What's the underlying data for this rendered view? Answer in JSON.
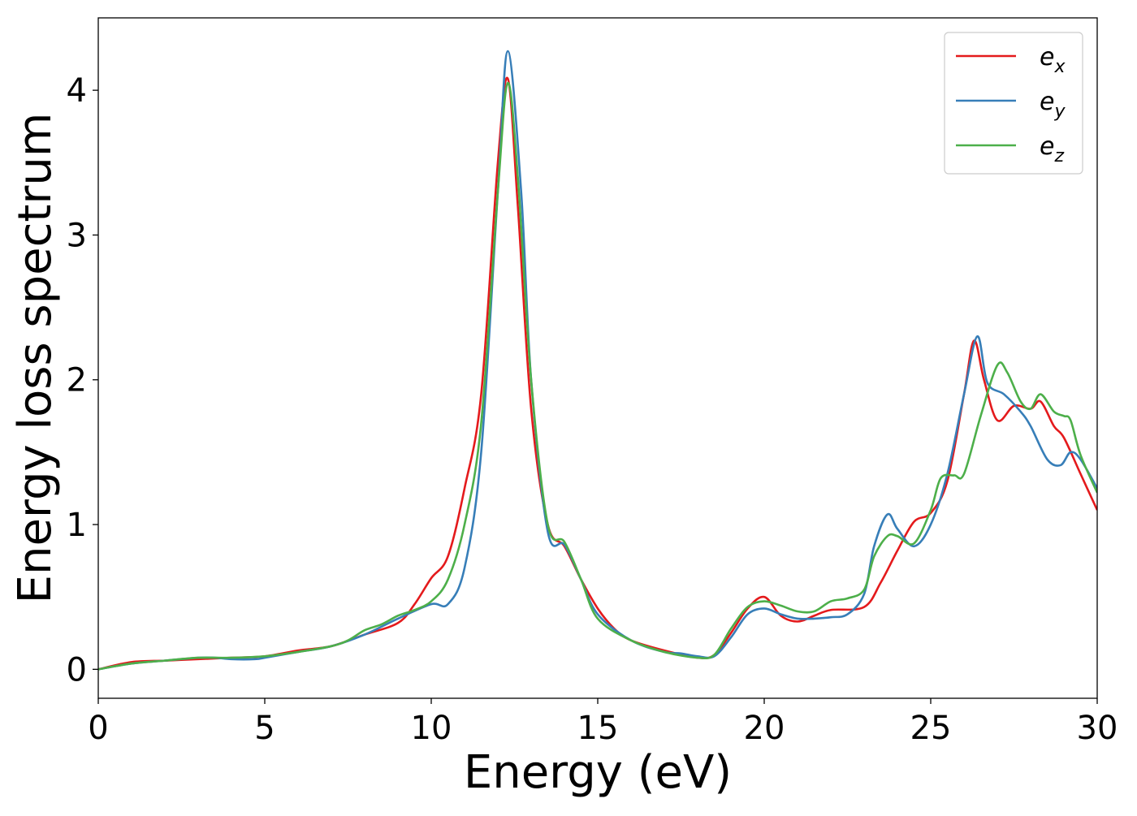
{
  "chart_data": {
    "type": "line",
    "xlabel": "Energy (eV)",
    "ylabel": "Energy loss spectrum",
    "xlim": [
      0,
      30
    ],
    "ylim": [
      -0.2,
      4.5
    ],
    "xticks": [
      0,
      5,
      10,
      15,
      20,
      25,
      30
    ],
    "xtick_labels": [
      "0",
      "5",
      "10",
      "15",
      "20",
      "25",
      "30"
    ],
    "yticks": [
      0,
      1,
      2,
      3,
      4
    ],
    "ytick_labels": [
      "0",
      "1",
      "2",
      "3",
      "4"
    ],
    "grid": false,
    "legend_position": "top-right",
    "series": [
      {
        "name": "e_x",
        "legend_base": "e",
        "legend_sub": "x",
        "color": "#e41a1c",
        "points": [
          [
            0,
            0.0
          ],
          [
            1,
            0.05
          ],
          [
            2,
            0.06
          ],
          [
            3,
            0.07
          ],
          [
            4,
            0.08
          ],
          [
            5,
            0.09
          ],
          [
            6,
            0.13
          ],
          [
            7,
            0.16
          ],
          [
            8,
            0.24
          ],
          [
            9,
            0.32
          ],
          [
            9.5,
            0.45
          ],
          [
            10,
            0.63
          ],
          [
            10.5,
            0.78
          ],
          [
            11,
            1.25
          ],
          [
            11.5,
            1.9
          ],
          [
            12,
            3.5
          ],
          [
            12.3,
            4.08
          ],
          [
            12.6,
            3.2
          ],
          [
            13,
            1.8
          ],
          [
            13.5,
            1.0
          ],
          [
            14,
            0.85
          ],
          [
            14.5,
            0.62
          ],
          [
            15,
            0.42
          ],
          [
            15.5,
            0.28
          ],
          [
            16,
            0.2
          ],
          [
            17,
            0.13
          ],
          [
            18,
            0.08
          ],
          [
            18.5,
            0.1
          ],
          [
            19,
            0.25
          ],
          [
            19.5,
            0.42
          ],
          [
            20,
            0.5
          ],
          [
            20.5,
            0.37
          ],
          [
            21,
            0.33
          ],
          [
            21.5,
            0.37
          ],
          [
            22,
            0.41
          ],
          [
            23,
            0.43
          ],
          [
            23.5,
            0.6
          ],
          [
            24,
            0.82
          ],
          [
            24.5,
            1.02
          ],
          [
            25,
            1.08
          ],
          [
            25.5,
            1.3
          ],
          [
            26,
            1.9
          ],
          [
            26.3,
            2.27
          ],
          [
            26.6,
            2.0
          ],
          [
            27,
            1.72
          ],
          [
            27.5,
            1.82
          ],
          [
            28,
            1.8
          ],
          [
            28.3,
            1.85
          ],
          [
            28.7,
            1.68
          ],
          [
            29,
            1.6
          ],
          [
            29.5,
            1.35
          ],
          [
            30,
            1.1
          ]
        ]
      },
      {
        "name": "e_y",
        "legend_base": "e",
        "legend_sub": "y",
        "color": "#377eb8",
        "points": [
          [
            0,
            0.0
          ],
          [
            1,
            0.04
          ],
          [
            2,
            0.06
          ],
          [
            3,
            0.08
          ],
          [
            3.5,
            0.08
          ],
          [
            4,
            0.07
          ],
          [
            4.7,
            0.07
          ],
          [
            5,
            0.08
          ],
          [
            6,
            0.12
          ],
          [
            7,
            0.16
          ],
          [
            8,
            0.24
          ],
          [
            9,
            0.35
          ],
          [
            10,
            0.45
          ],
          [
            10.5,
            0.45
          ],
          [
            11,
            0.7
          ],
          [
            11.5,
            1.5
          ],
          [
            12,
            3.3
          ],
          [
            12.3,
            4.27
          ],
          [
            12.7,
            3.3
          ],
          [
            13,
            2.0
          ],
          [
            13.5,
            0.95
          ],
          [
            14,
            0.86
          ],
          [
            14.5,
            0.62
          ],
          [
            15,
            0.38
          ],
          [
            16,
            0.2
          ],
          [
            17,
            0.12
          ],
          [
            17.5,
            0.11
          ],
          [
            18,
            0.09
          ],
          [
            18.5,
            0.09
          ],
          [
            19,
            0.22
          ],
          [
            19.5,
            0.38
          ],
          [
            20,
            0.42
          ],
          [
            20.5,
            0.38
          ],
          [
            21,
            0.35
          ],
          [
            21.5,
            0.35
          ],
          [
            22,
            0.36
          ],
          [
            22.5,
            0.38
          ],
          [
            23,
            0.52
          ],
          [
            23.3,
            0.85
          ],
          [
            23.7,
            1.07
          ],
          [
            24,
            0.97
          ],
          [
            24.5,
            0.85
          ],
          [
            25,
            1.0
          ],
          [
            25.5,
            1.35
          ],
          [
            26,
            1.9
          ],
          [
            26.4,
            2.3
          ],
          [
            26.7,
            1.98
          ],
          [
            27.2,
            1.9
          ],
          [
            27.7,
            1.78
          ],
          [
            28,
            1.68
          ],
          [
            28.5,
            1.45
          ],
          [
            28.9,
            1.41
          ],
          [
            29.2,
            1.5
          ],
          [
            29.5,
            1.45
          ],
          [
            30,
            1.25
          ]
        ]
      },
      {
        "name": "e_z",
        "legend_base": "e",
        "legend_sub": "z",
        "color": "#4daf4a",
        "points": [
          [
            0,
            0.0
          ],
          [
            1,
            0.04
          ],
          [
            2,
            0.06
          ],
          [
            3,
            0.08
          ],
          [
            4,
            0.08
          ],
          [
            5,
            0.09
          ],
          [
            6,
            0.12
          ],
          [
            7,
            0.16
          ],
          [
            7.5,
            0.2
          ],
          [
            8,
            0.27
          ],
          [
            8.5,
            0.31
          ],
          [
            9,
            0.37
          ],
          [
            9.5,
            0.41
          ],
          [
            10,
            0.47
          ],
          [
            10.5,
            0.62
          ],
          [
            11,
            1.0
          ],
          [
            11.5,
            1.7
          ],
          [
            12,
            3.3
          ],
          [
            12.3,
            4.05
          ],
          [
            12.6,
            3.4
          ],
          [
            13,
            2.0
          ],
          [
            13.5,
            1.0
          ],
          [
            14,
            0.88
          ],
          [
            14.5,
            0.62
          ],
          [
            15,
            0.35
          ],
          [
            16,
            0.2
          ],
          [
            17,
            0.12
          ],
          [
            18,
            0.08
          ],
          [
            18.5,
            0.1
          ],
          [
            19,
            0.28
          ],
          [
            19.5,
            0.43
          ],
          [
            20,
            0.47
          ],
          [
            20.5,
            0.44
          ],
          [
            21,
            0.4
          ],
          [
            21.5,
            0.4
          ],
          [
            22,
            0.47
          ],
          [
            22.5,
            0.49
          ],
          [
            23,
            0.55
          ],
          [
            23.3,
            0.78
          ],
          [
            23.7,
            0.92
          ],
          [
            24,
            0.92
          ],
          [
            24.5,
            0.87
          ],
          [
            25,
            1.1
          ],
          [
            25.3,
            1.32
          ],
          [
            25.7,
            1.34
          ],
          [
            26,
            1.35
          ],
          [
            26.5,
            1.75
          ],
          [
            27,
            2.1
          ],
          [
            27.3,
            2.05
          ],
          [
            27.7,
            1.85
          ],
          [
            28,
            1.8
          ],
          [
            28.3,
            1.9
          ],
          [
            28.7,
            1.78
          ],
          [
            29,
            1.75
          ],
          [
            29.2,
            1.72
          ],
          [
            29.5,
            1.48
          ],
          [
            30,
            1.22
          ]
        ]
      }
    ]
  }
}
